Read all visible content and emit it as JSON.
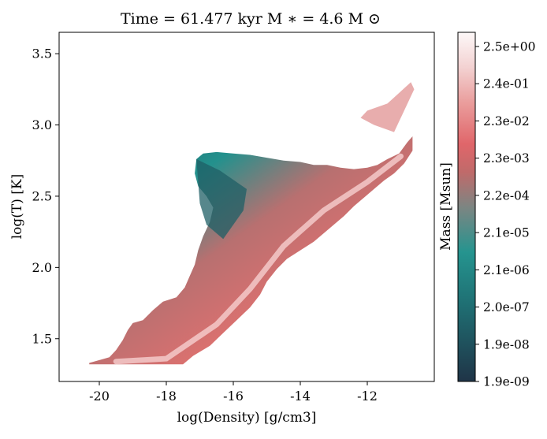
{
  "chart_data": {
    "type": "heatmap",
    "title": "Time = 61.477 kyr    M$_*$ = 4.6 M$_\\odot$",
    "title_display": "Time = 61.477 kyr    M ∗ = 4.6 M ⊙",
    "xlabel": "log(Density) [g/cm3]",
    "ylabel": "log(T) [K]",
    "xlim": [
      -21.2,
      -10.0
    ],
    "ylim": [
      1.2,
      3.65
    ],
    "x_ticks": [
      -20,
      -18,
      -16,
      -14,
      -12
    ],
    "x_tick_labels": [
      "-20",
      "-18",
      "-16",
      "-14",
      "-12"
    ],
    "y_ticks": [
      1.5,
      2.0,
      2.5,
      3.0,
      3.5
    ],
    "y_tick_labels": [
      "1.5",
      "2.0",
      "2.5",
      "3.0",
      "3.5"
    ],
    "grid": false,
    "colorbar": {
      "label": "Mass [Msun]",
      "scale": "log",
      "tick_labels_top_to_bottom": [
        "2.5e+00",
        "2.4e-01",
        "2.3e-02",
        "2.3e-03",
        "2.2e-04",
        "2.1e-05",
        "2.1e-06",
        "2.0e-07",
        "1.9e-08",
        "1.9e-09"
      ],
      "colormap_stops": [
        "#1f3447",
        "#217a7e",
        "#249590",
        "#7b8581",
        "#b96a69",
        "#e0666a",
        "#ea9e9d",
        "#f3d1d1",
        "#fdf8f8"
      ]
    },
    "distribution_boundary": [
      [
        -20.3,
        1.32
      ],
      [
        -17.5,
        1.32
      ],
      [
        -17.2,
        1.38
      ],
      [
        -16.7,
        1.45
      ],
      [
        -16.3,
        1.54
      ],
      [
        -15.9,
        1.63
      ],
      [
        -15.5,
        1.72
      ],
      [
        -15.2,
        1.81
      ],
      [
        -15.0,
        1.9
      ],
      [
        -14.7,
        1.99
      ],
      [
        -14.4,
        2.06
      ],
      [
        -14.0,
        2.12
      ],
      [
        -13.6,
        2.18
      ],
      [
        -13.3,
        2.24
      ],
      [
        -13.0,
        2.3
      ],
      [
        -12.7,
        2.36
      ],
      [
        -12.4,
        2.43
      ],
      [
        -12.1,
        2.49
      ],
      [
        -11.8,
        2.55
      ],
      [
        -11.5,
        2.61
      ],
      [
        -11.2,
        2.66
      ],
      [
        -10.9,
        2.73
      ],
      [
        -10.65,
        2.82
      ],
      [
        -10.65,
        2.92
      ],
      [
        -10.8,
        2.88
      ],
      [
        -11.05,
        2.8
      ],
      [
        -11.4,
        2.76
      ],
      [
        -11.7,
        2.72
      ],
      [
        -12.0,
        2.7
      ],
      [
        -12.4,
        2.69
      ],
      [
        -12.8,
        2.7
      ],
      [
        -13.2,
        2.72
      ],
      [
        -13.6,
        2.72
      ],
      [
        -14.0,
        2.74
      ],
      [
        -14.5,
        2.75
      ],
      [
        -15.0,
        2.77
      ],
      [
        -15.5,
        2.79
      ],
      [
        -16.0,
        2.8
      ],
      [
        -16.5,
        2.81
      ],
      [
        -16.9,
        2.8
      ],
      [
        -17.1,
        2.76
      ],
      [
        -17.15,
        2.66
      ],
      [
        -17.05,
        2.57
      ],
      [
        -16.8,
        2.5
      ],
      [
        -16.6,
        2.42
      ],
      [
        -16.7,
        2.32
      ],
      [
        -16.9,
        2.22
      ],
      [
        -17.05,
        2.12
      ],
      [
        -17.15,
        2.02
      ],
      [
        -17.3,
        1.94
      ],
      [
        -17.45,
        1.86
      ],
      [
        -17.7,
        1.79
      ],
      [
        -18.1,
        1.76
      ],
      [
        -18.4,
        1.7
      ],
      [
        -18.7,
        1.63
      ],
      [
        -19.0,
        1.61
      ],
      [
        -19.15,
        1.56
      ],
      [
        -19.3,
        1.49
      ],
      [
        -19.5,
        1.42
      ],
      [
        -19.7,
        1.37
      ],
      [
        -20.0,
        1.35
      ],
      [
        -20.3,
        1.33
      ]
    ],
    "mass_ridge": [
      [
        -19.5,
        1.34
      ],
      [
        -18.0,
        1.36
      ],
      [
        -16.5,
        1.6
      ],
      [
        -15.5,
        1.85
      ],
      [
        -14.5,
        2.15
      ],
      [
        -13.3,
        2.4
      ],
      [
        -12.0,
        2.6
      ],
      [
        -11.0,
        2.78
      ]
    ],
    "low_mass_region": [
      [
        -17.1,
        2.76
      ],
      [
        -16.4,
        2.68
      ],
      [
        -15.6,
        2.55
      ],
      [
        -15.7,
        2.4
      ],
      [
        -16.3,
        2.2
      ],
      [
        -16.8,
        2.3
      ],
      [
        -17.0,
        2.45
      ]
    ],
    "sparse_spur": [
      [
        -12.2,
        3.05
      ],
      [
        -11.8,
        3.0
      ],
      [
        -11.2,
        2.95
      ],
      [
        -10.6,
        3.25
      ],
      [
        -10.7,
        3.3
      ],
      [
        -11.4,
        3.15
      ],
      [
        -12.0,
        3.1
      ]
    ]
  }
}
